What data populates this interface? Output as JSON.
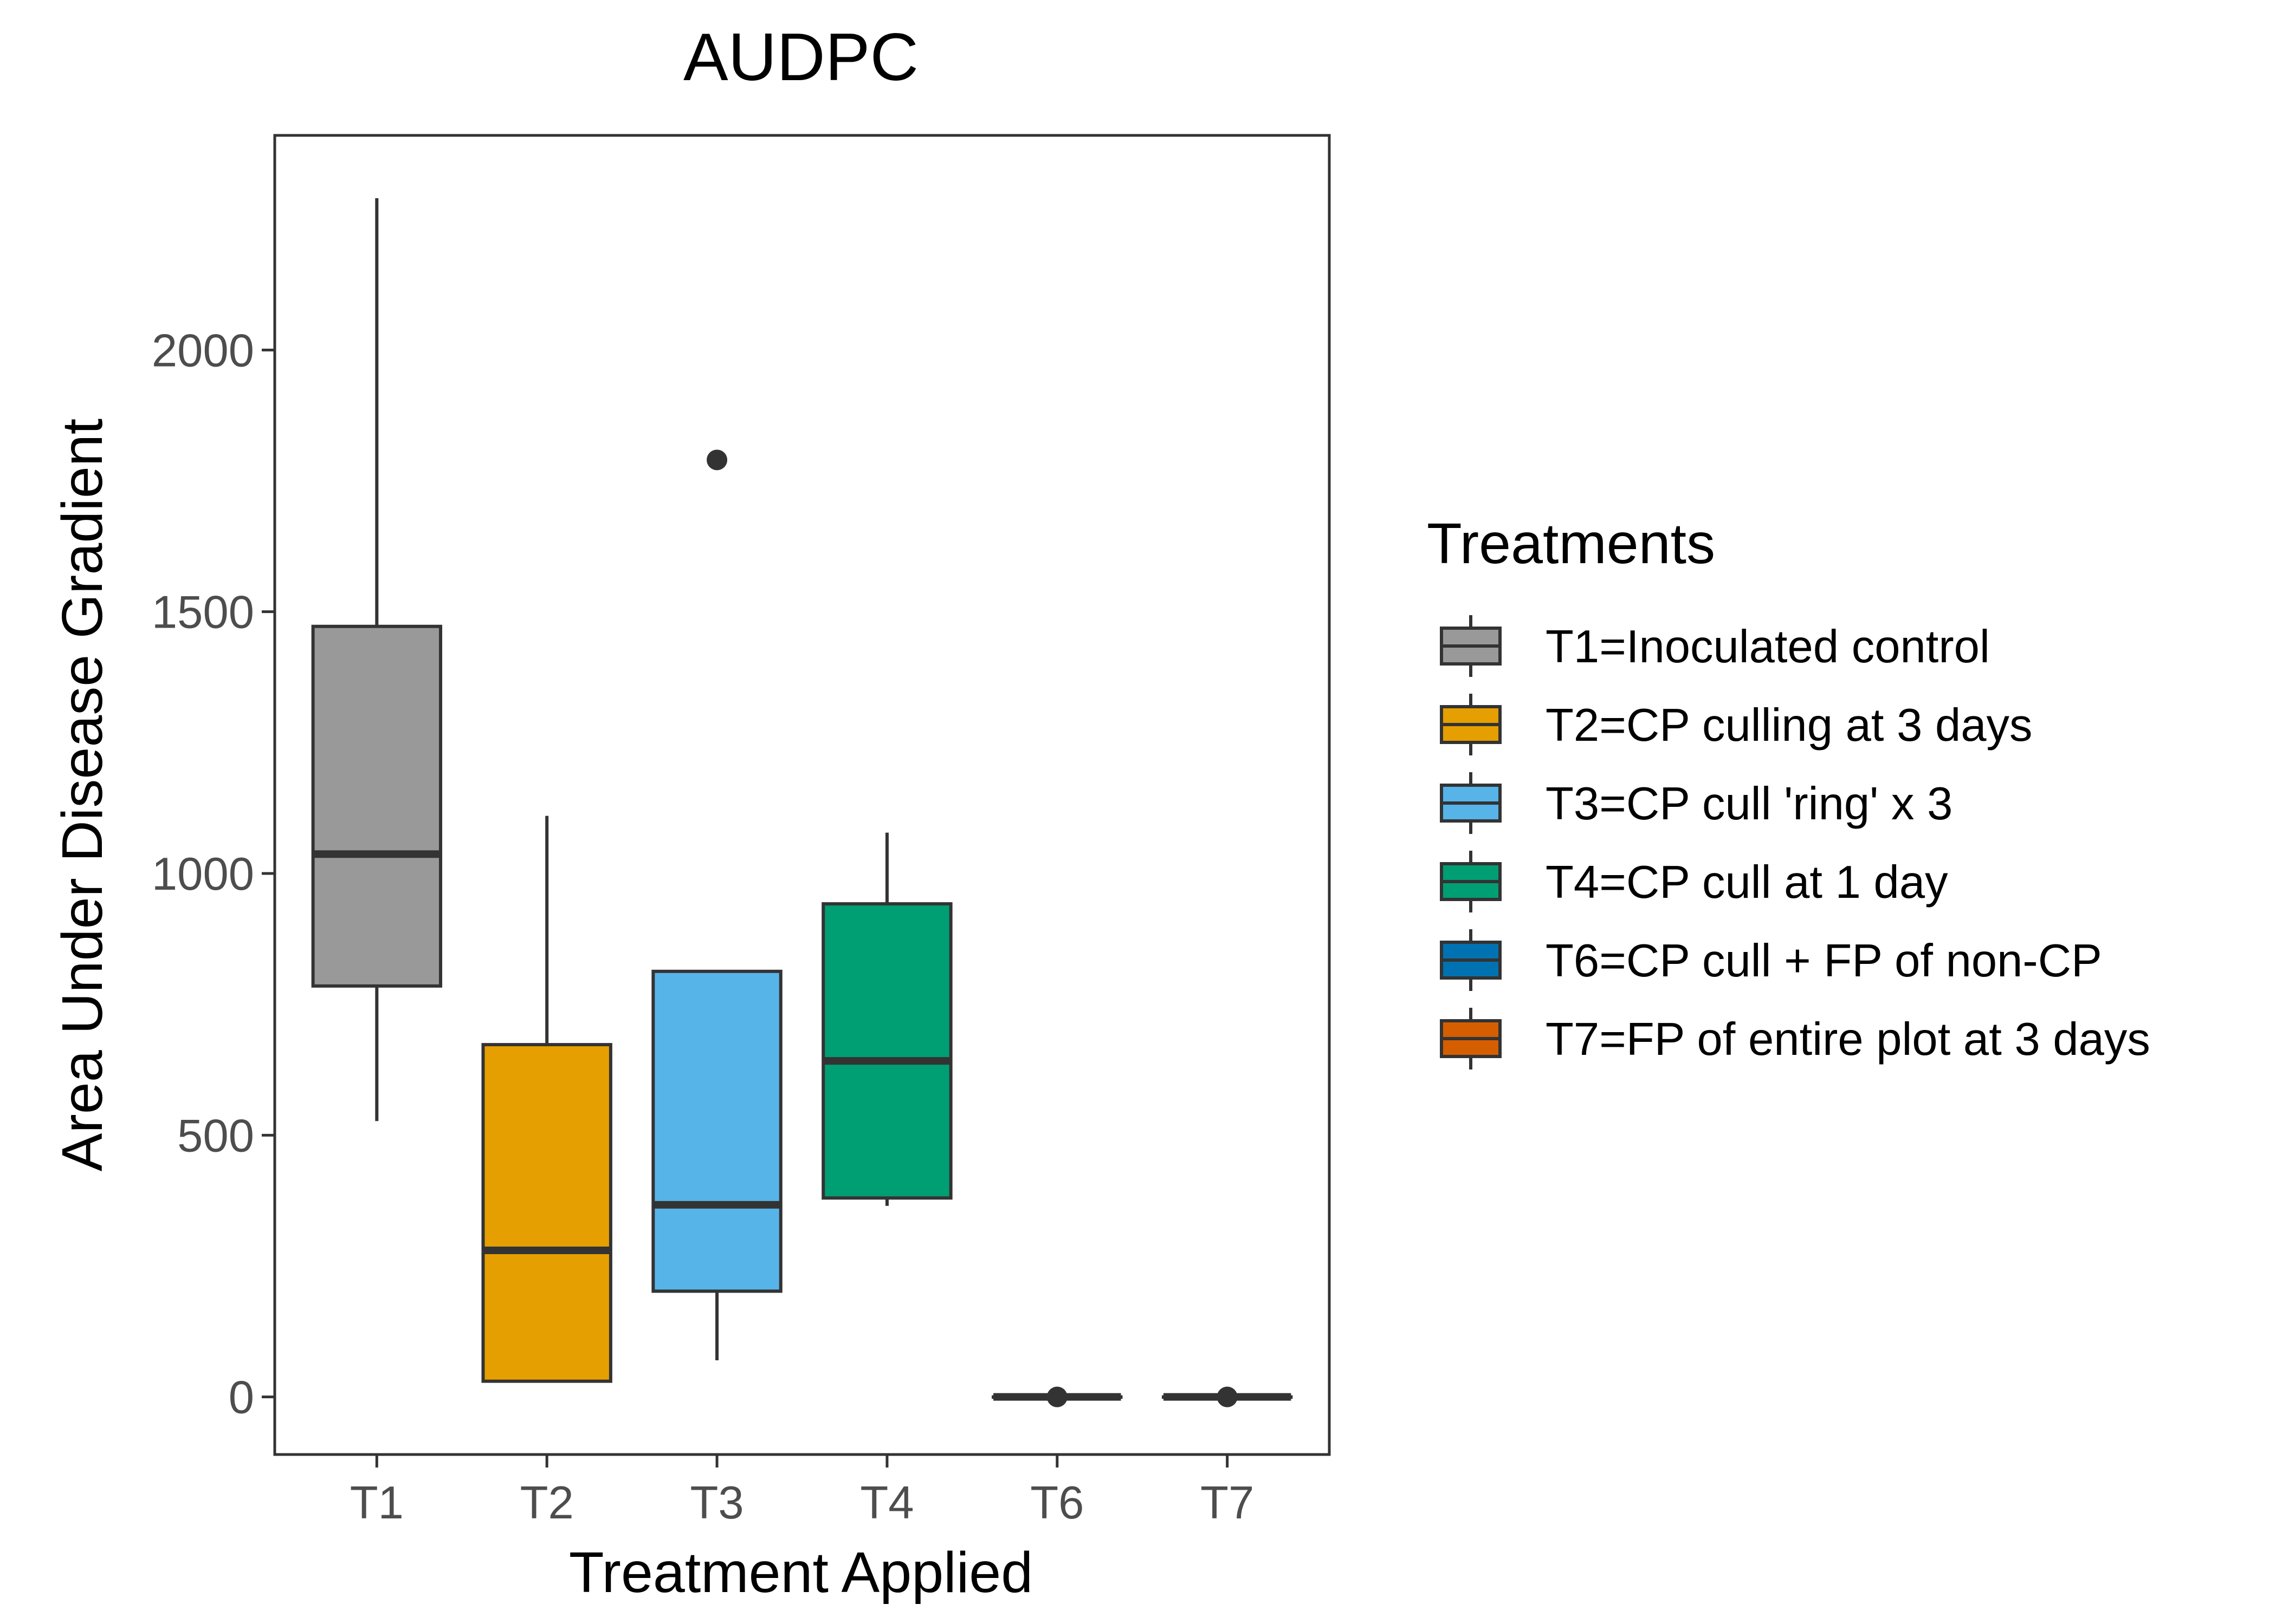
{
  "chart_data": {
    "type": "box",
    "title": "AUDPC",
    "xlabel": "Treatment Applied",
    "ylabel": "Area Under Disease Gradient",
    "ylim": [
      -110,
      2410
    ],
    "y_ticks": [
      0,
      500,
      1000,
      1500,
      2000
    ],
    "categories": [
      "T1",
      "T2",
      "T3",
      "T4",
      "T6",
      "T7"
    ],
    "grid": false,
    "legend": {
      "title": "Treatments",
      "placement": "right",
      "entries": [
        {
          "label": "T1=Inoculated control",
          "color": "#999999"
        },
        {
          "label": "T2=CP culling at 3 days",
          "color": "#E69F00"
        },
        {
          "label": "T3=CP cull 'ring' x 3",
          "color": "#56B4E9"
        },
        {
          "label": "T4=CP cull at 1 day",
          "color": "#009E73"
        },
        {
          "label": "T6=CP cull + FP of non-CP",
          "color": "#0072B2"
        },
        {
          "label": "T7=FP of entire plot at 3 days",
          "color": "#D55E00"
        }
      ]
    },
    "boxes": [
      {
        "category": "T1",
        "whisker_low": 527,
        "q1": 785,
        "median": 1037,
        "q3": 1472,
        "whisker_high": 2290,
        "outliers": [],
        "color": "#999999"
      },
      {
        "category": "T2",
        "whisker_low": 30,
        "q1": 30,
        "median": 280,
        "q3": 673,
        "whisker_high": 1110,
        "outliers": [],
        "color": "#E69F00"
      },
      {
        "category": "T3",
        "whisker_low": 70,
        "q1": 202,
        "median": 367,
        "q3": 813,
        "whisker_high": 813,
        "outliers": [
          1790
        ],
        "color": "#56B4E9"
      },
      {
        "category": "T4",
        "whisker_low": 365,
        "q1": 380,
        "median": 642,
        "q3": 942,
        "whisker_high": 1078,
        "outliers": [],
        "color": "#009E73"
      },
      {
        "category": "T6",
        "whisker_low": 0,
        "q1": 0,
        "median": 0,
        "q3": 0,
        "whisker_high": 0,
        "outliers": [
          0
        ],
        "color": "#0072B2"
      },
      {
        "category": "T7",
        "whisker_low": 0,
        "q1": 0,
        "median": 0,
        "q3": 0,
        "whisker_high": 0,
        "outliers": [
          0
        ],
        "color": "#D55E00"
      }
    ]
  }
}
